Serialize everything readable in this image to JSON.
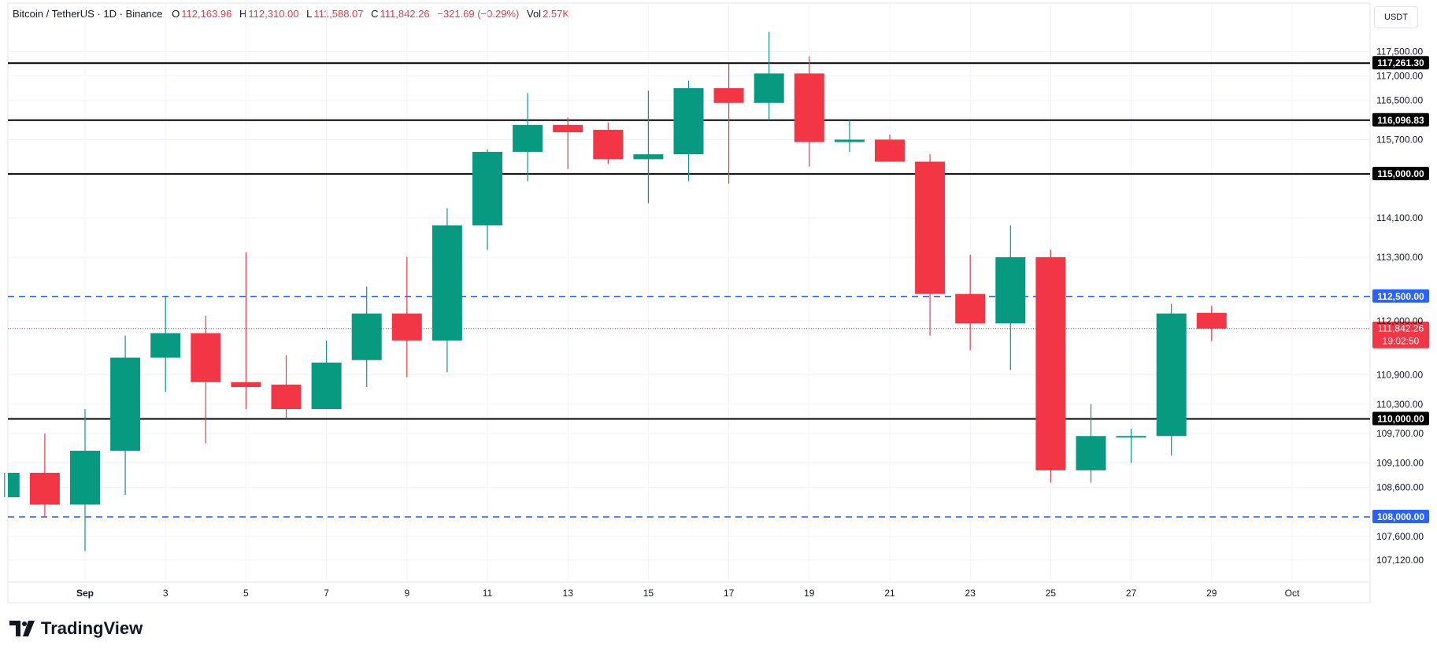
{
  "header": {
    "symbol": "Bitcoin / TetherUS · 1D · Binance",
    "open_label": "O",
    "open": "112,163.96",
    "high_label": "H",
    "high": "112,310.00",
    "low_label": "L",
    "low": "111,588.07",
    "close_label": "C",
    "close": "111,842.26",
    "change": "−321.69 (−0.29%)",
    "vol_label": "Vol",
    "vol": "2.57K"
  },
  "currency": "USDT",
  "brand": "TradingView",
  "colors": {
    "up": "#089981",
    "down": "#f23645",
    "hline": "#000000",
    "dashed": "#2962ff",
    "price": "#f23645"
  },
  "chart_data": {
    "type": "candlestick",
    "title": "Bitcoin / TetherUS · 1D · Binance",
    "ylim": [
      106700,
      118100
    ],
    "x_ticks": [
      {
        "day": 1,
        "label": "Sep"
      },
      {
        "day": 3,
        "label": "3"
      },
      {
        "day": 5,
        "label": "5"
      },
      {
        "day": 7,
        "label": "7"
      },
      {
        "day": 9,
        "label": "9"
      },
      {
        "day": 11,
        "label": "11"
      },
      {
        "day": 13,
        "label": "13"
      },
      {
        "day": 15,
        "label": "15"
      },
      {
        "day": 17,
        "label": "17"
      },
      {
        "day": 19,
        "label": "19"
      },
      {
        "day": 21,
        "label": "21"
      },
      {
        "day": 23,
        "label": "23"
      },
      {
        "day": 25,
        "label": "25"
      },
      {
        "day": 27,
        "label": "27"
      },
      {
        "day": 29,
        "label": "29"
      },
      {
        "day": 31,
        "label": "Oct"
      }
    ],
    "y_ticks": [
      {
        "value": 117500,
        "label": "117,500.00"
      },
      {
        "value": 117000,
        "label": "117,000.00"
      },
      {
        "value": 116500,
        "label": "116,500.00"
      },
      {
        "value": 115700,
        "label": "115,700.00"
      },
      {
        "value": 114100,
        "label": "114,100.00"
      },
      {
        "value": 113300,
        "label": "113,300.00"
      },
      {
        "value": 112000,
        "label": "112,000.00"
      },
      {
        "value": 110900,
        "label": "110,900.00"
      },
      {
        "value": 110300,
        "label": "110,300.00"
      },
      {
        "value": 109700,
        "label": "109,700.00"
      },
      {
        "value": 109100,
        "label": "109,100.00"
      },
      {
        "value": 108600,
        "label": "108,600.00"
      },
      {
        "value": 107600,
        "label": "107,600.00"
      },
      {
        "value": 107120,
        "label": "107,120.00"
      }
    ],
    "candles": [
      {
        "day": -1,
        "o": 108400,
        "h": 108900,
        "l": 108400,
        "c": 108900
      },
      {
        "day": 0,
        "o": 108900,
        "h": 109700,
        "l": 108000,
        "c": 108250
      },
      {
        "day": 1,
        "o": 108250,
        "h": 110200,
        "l": 107300,
        "c": 109350
      },
      {
        "day": 2,
        "o": 109350,
        "h": 111700,
        "l": 108450,
        "c": 111250
      },
      {
        "day": 3,
        "o": 111250,
        "h": 112500,
        "l": 110550,
        "c": 111750
      },
      {
        "day": 4,
        "o": 111750,
        "h": 112100,
        "l": 109500,
        "c": 110750
      },
      {
        "day": 5,
        "o": 110750,
        "h": 113400,
        "l": 110200,
        "c": 110650
      },
      {
        "day": 6,
        "o": 110700,
        "h": 111300,
        "l": 110000,
        "c": 110200
      },
      {
        "day": 7,
        "o": 110200,
        "h": 111600,
        "l": 110200,
        "c": 111150
      },
      {
        "day": 8,
        "o": 111200,
        "h": 112700,
        "l": 110650,
        "c": 112150
      },
      {
        "day": 9,
        "o": 112150,
        "h": 113300,
        "l": 110850,
        "c": 111600
      },
      {
        "day": 10,
        "o": 111600,
        "h": 114300,
        "l": 110950,
        "c": 113950
      },
      {
        "day": 11,
        "o": 113950,
        "h": 115500,
        "l": 113450,
        "c": 115450
      },
      {
        "day": 12,
        "o": 115450,
        "h": 116650,
        "l": 114850,
        "c": 116000
      },
      {
        "day": 13,
        "o": 116000,
        "h": 116150,
        "l": 115100,
        "c": 115850
      },
      {
        "day": 14,
        "o": 115900,
        "h": 116050,
        "l": 115200,
        "c": 115300
      },
      {
        "day": 15,
        "o": 115300,
        "h": 116700,
        "l": 114400,
        "c": 115400
      },
      {
        "day": 16,
        "o": 115400,
        "h": 116900,
        "l": 114850,
        "c": 116750
      },
      {
        "day": 17,
        "o": 116750,
        "h": 117250,
        "l": 114800,
        "c": 116450
      },
      {
        "day": 18,
        "o": 116450,
        "h": 117900,
        "l": 116100,
        "c": 117050
      },
      {
        "day": 19,
        "o": 117050,
        "h": 117400,
        "l": 115150,
        "c": 115650
      },
      {
        "day": 20,
        "o": 115650,
        "h": 116100,
        "l": 115450,
        "c": 115700
      },
      {
        "day": 21,
        "o": 115700,
        "h": 115800,
        "l": 115250,
        "c": 115250
      },
      {
        "day": 22,
        "o": 115250,
        "h": 115400,
        "l": 111700,
        "c": 112550
      },
      {
        "day": 23,
        "o": 112550,
        "h": 113350,
        "l": 111400,
        "c": 111950
      },
      {
        "day": 24,
        "o": 111950,
        "h": 113950,
        "l": 111000,
        "c": 113300
      },
      {
        "day": 25,
        "o": 113300,
        "h": 113450,
        "l": 108700,
        "c": 108950
      },
      {
        "day": 26,
        "o": 108950,
        "h": 110300,
        "l": 108700,
        "c": 109650
      },
      {
        "day": 27,
        "o": 109650,
        "h": 109800,
        "l": 109100,
        "c": 109650
      },
      {
        "day": 28,
        "o": 109650,
        "h": 112350,
        "l": 109250,
        "c": 112150
      },
      {
        "day": 29,
        "o": 112164,
        "h": 112310,
        "l": 111588,
        "c": 111842
      }
    ],
    "horizontal_lines": [
      {
        "value": 117261.3,
        "label": "117,261.30",
        "style": "solid"
      },
      {
        "value": 116096.83,
        "label": "116,096.83",
        "style": "solid"
      },
      {
        "value": 115000.0,
        "label": "115,000.00",
        "style": "solid"
      },
      {
        "value": 110000.0,
        "label": "110,000.00",
        "style": "solid"
      },
      {
        "value": 112500.0,
        "label": "112,500.00",
        "style": "dashed"
      },
      {
        "value": 108000.0,
        "label": "108,000.00",
        "style": "dashed"
      }
    ],
    "last_price": {
      "value": 111842.26,
      "label": "111,842.26",
      "countdown": "19:02:50"
    }
  }
}
